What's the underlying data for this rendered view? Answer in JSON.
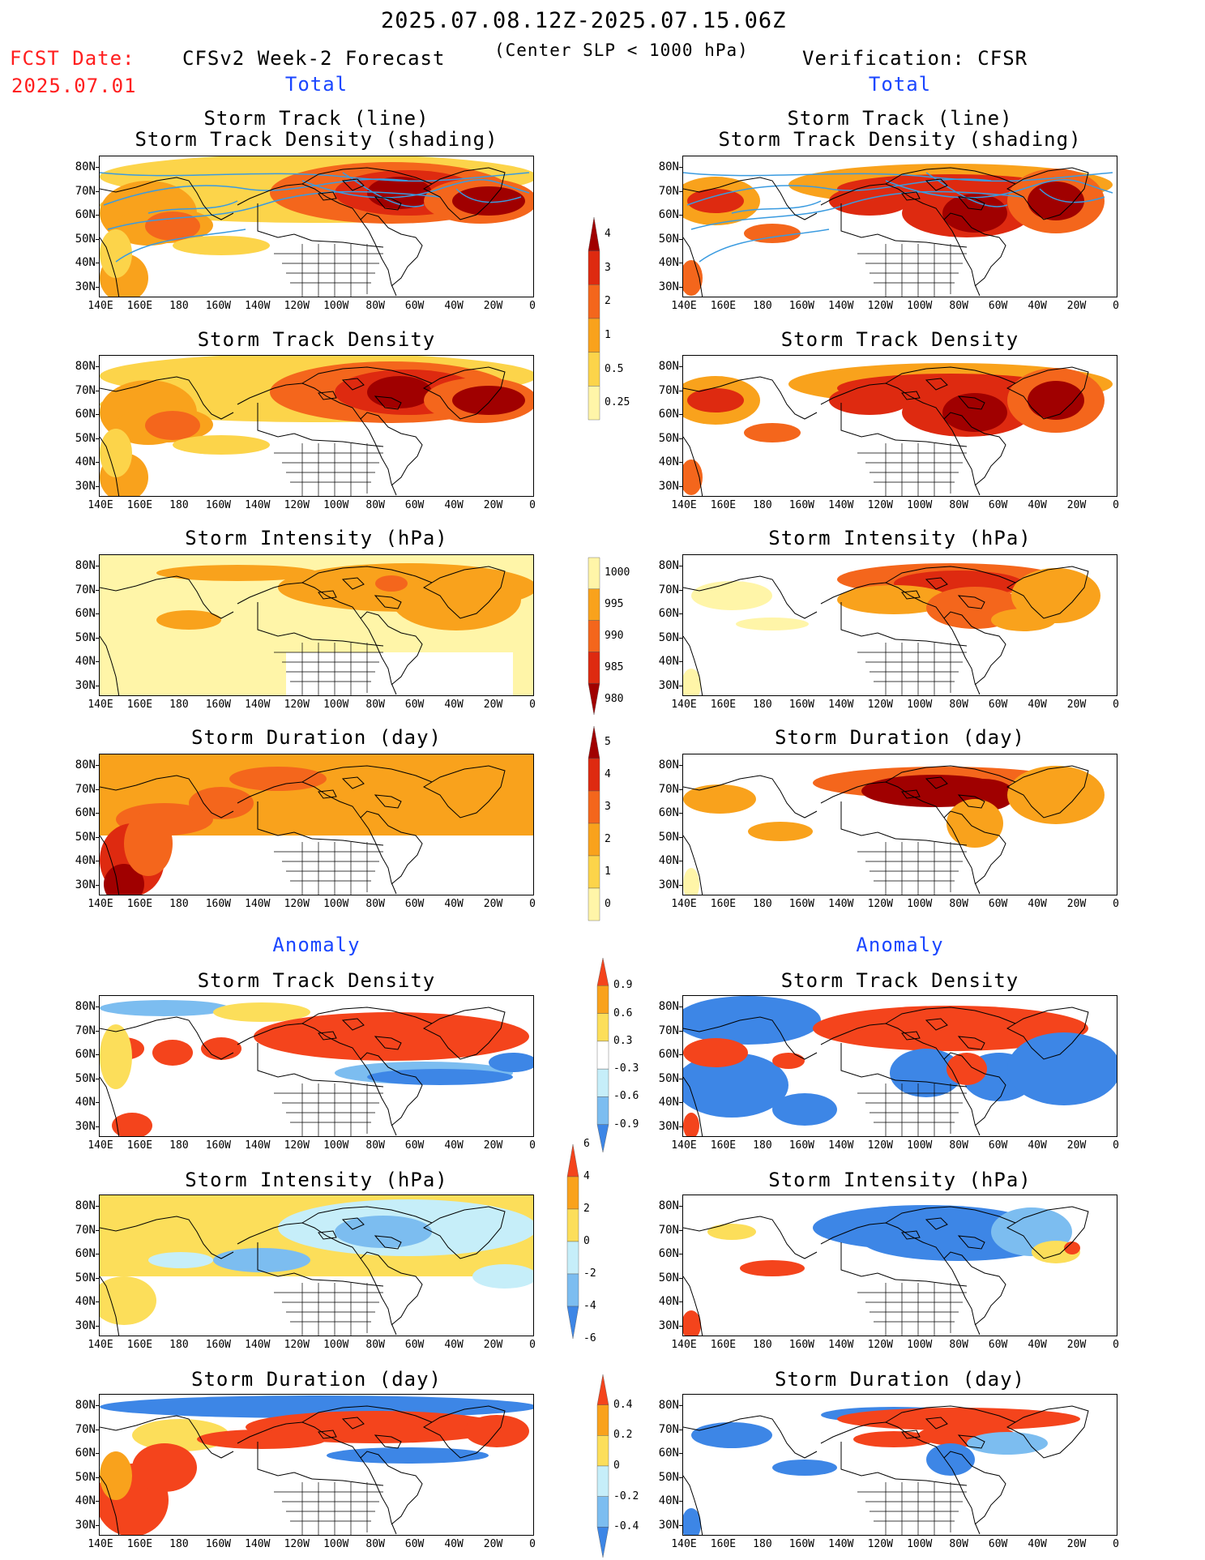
{
  "header": {
    "date_range": "2025.07.08.12Z-2025.07.15.06Z",
    "fcst_label": "FCST Date:",
    "fcst_date": "2025.07.01",
    "forecast_title": "CFSv2 Week-2 Forecast",
    "criterion": "(Center SLP < 1000 hPa)",
    "verification_title": "Verification: CFSR"
  },
  "sections": {
    "total": "Total",
    "anomaly": "Anomaly"
  },
  "panel_titles": {
    "track_line": "Storm Track (line)",
    "track_shading": "Storm Track Density (shading)",
    "density": "Storm Track Density",
    "intensity": "Storm Intensity (hPa)",
    "duration": "Storm Duration (day)"
  },
  "axes": {
    "lat_ticks": [
      "80N",
      "70N",
      "60N",
      "50N",
      "40N",
      "30N"
    ],
    "lon_ticks": [
      "140E",
      "160E",
      "180",
      "160W",
      "140W",
      "120W",
      "100W",
      "80W",
      "60W",
      "40W",
      "20W",
      "0"
    ]
  },
  "colorbars": {
    "density_total": {
      "labels": [
        "4",
        "3",
        "2",
        "1",
        "0.5",
        "0.25"
      ],
      "colors": [
        "#a00000",
        "#de2a10",
        "#f4661c",
        "#f9a21c",
        "#fcd44a",
        "#fff5a8"
      ]
    },
    "intensity_total": {
      "labels": [
        "1000",
        "995",
        "990",
        "985",
        "980"
      ],
      "colors": [
        "#fff5a8",
        "#f9a21c",
        "#f4661c",
        "#de2a10",
        "#a00000"
      ]
    },
    "duration_total": {
      "labels": [
        "5",
        "4",
        "3",
        "2",
        "1",
        "0"
      ],
      "colors": [
        "#a00000",
        "#de2a10",
        "#f4661c",
        "#f9a21c",
        "#fcd44a",
        "#fff5a8"
      ]
    },
    "density_anom": {
      "labels": [
        "0.9",
        "0.6",
        "0.3",
        "-0.3",
        "-0.6",
        "-0.9"
      ],
      "colors": [
        "#f4441c",
        "#f9a21c",
        "#fcde5a",
        "#ffffff",
        "#c6eef9",
        "#7cbdf0",
        "#3d86e6"
      ]
    },
    "intensity_anom": {
      "labels": [
        "6",
        "4",
        "2",
        "0",
        "-2",
        "-4",
        "-6"
      ],
      "colors": [
        "#f4441c",
        "#f9a21c",
        "#fcde5a",
        "#c6eef9",
        "#7cbdf0",
        "#3d86e6"
      ]
    },
    "duration_anom": {
      "labels": [
        "0.4",
        "0.2",
        "0",
        "-0.2",
        "-0.4"
      ],
      "colors": [
        "#f4441c",
        "#f9a21c",
        "#fcde5a",
        "#c6eef9",
        "#7cbdf0",
        "#3d86e6"
      ]
    }
  },
  "palettes": {
    "warm": [
      "#fff5a8",
      "#fcd44a",
      "#f9a21c",
      "#f4661c",
      "#de2a10",
      "#a00000"
    ],
    "anomaly": [
      "#3d86e6",
      "#7cbdf0",
      "#c6eef9",
      "#ffffff",
      "#fcde5a",
      "#f9a21c",
      "#f4441c"
    ],
    "track_line": "#3a9be0"
  }
}
